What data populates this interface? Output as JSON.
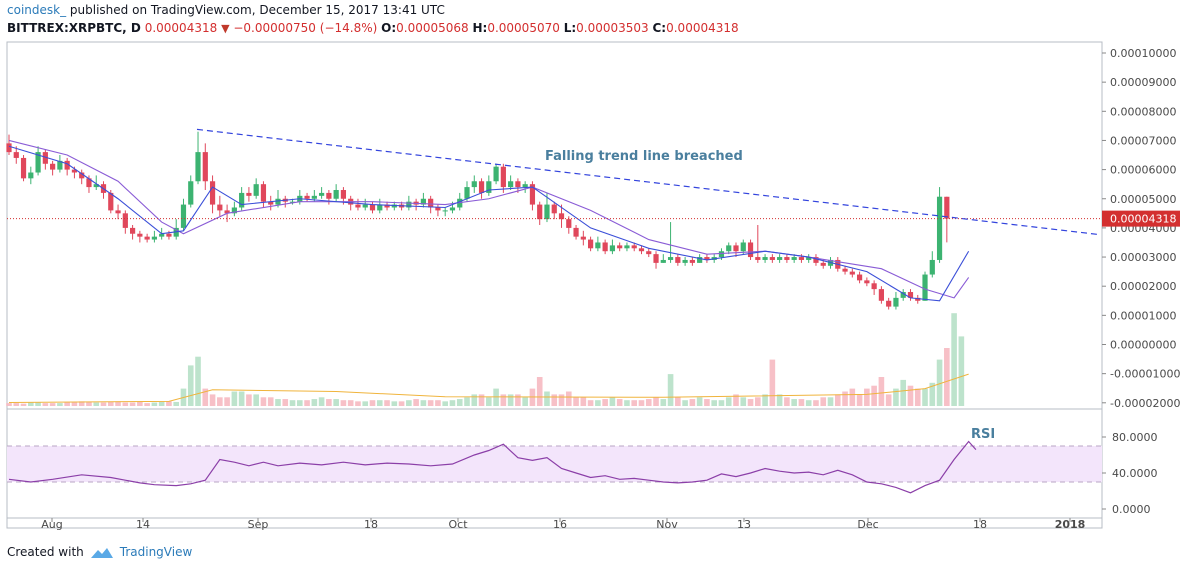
{
  "header": {
    "brand": "coindesk_",
    "published_text": "published on TradingView.com, December 15, 2017 13:41 UTC",
    "symbol": "BITTREX:XRPBTC, D",
    "last": "0.00004318",
    "change": "−0.00000750 (−14.8%)",
    "open_label": "O:",
    "open": "0.00005068",
    "high_label": "H:",
    "high": "0.00005070",
    "low_label": "L:",
    "low": "0.00003503",
    "close_label": "C:",
    "close": "0.00004318"
  },
  "footer": {
    "created_with": "Created with",
    "tradingview": "TradingView"
  },
  "colors": {
    "up": "#3cb371",
    "down": "#e0475b",
    "trend_line": "#3344dd",
    "ma_fast": "#3b4fd8",
    "ma_slow": "#8a5cd6",
    "rsi_line": "#8b3fa8",
    "rsi_band": "#f3e5fb",
    "price_line": "#d32f2f",
    "annotation": "#4a7f9e"
  },
  "chart_data": [
    {
      "type": "candlestick",
      "title": "",
      "x_tick_labels": [
        "Aug",
        "14",
        "Sep",
        "18",
        "Oct",
        "16",
        "Nov",
        "13",
        "Dec",
        "18",
        "2018"
      ],
      "y_tick_labels": [
        "0.00010000",
        "0.00009000",
        "0.00008000",
        "0.00007000",
        "0.00006000",
        "0.00005000",
        "0.00004000",
        "0.00003000",
        "0.00002000",
        "0.00001000",
        "0.00000000",
        "-0.00001000",
        "-0.00002000"
      ],
      "ylim": [
        -2e-05,
        0.000105
      ],
      "last_price_label": "0.00004318",
      "annotation": "Falling trend line breached",
      "trend_line": {
        "start": {
          "x": "2017-08-22",
          "y": 7.38e-05
        },
        "end": {
          "x": "2017-12-31",
          "y": 3.78e-05
        }
      },
      "start_date": "2017-07-27",
      "candles": [
        [
          6.9,
          6.6,
          7.2,
          6.5
        ],
        [
          6.6,
          6.4,
          6.8,
          6.2
        ],
        [
          6.4,
          5.7,
          6.5,
          5.6
        ],
        [
          5.7,
          5.9,
          6.1,
          5.5
        ],
        [
          5.9,
          6.6,
          6.8,
          5.8
        ],
        [
          6.6,
          6.2,
          6.7,
          6.0
        ],
        [
          6.2,
          6.0,
          6.3,
          5.8
        ],
        [
          6.0,
          6.3,
          6.5,
          5.9
        ],
        [
          6.3,
          6.0,
          6.4,
          5.8
        ],
        [
          6.0,
          5.9,
          6.1,
          5.7
        ],
        [
          5.9,
          5.7,
          6.0,
          5.5
        ],
        [
          5.7,
          5.4,
          5.8,
          5.2
        ],
        [
          5.4,
          5.5,
          5.8,
          5.3
        ],
        [
          5.5,
          5.2,
          5.6,
          5.0
        ],
        [
          5.2,
          4.6,
          5.3,
          4.5
        ],
        [
          4.6,
          4.5,
          4.8,
          4.3
        ],
        [
          4.5,
          4.0,
          4.6,
          3.8
        ],
        [
          4.0,
          3.8,
          4.1,
          3.6
        ],
        [
          3.8,
          3.7,
          3.9,
          3.5
        ],
        [
          3.7,
          3.6,
          3.8,
          3.5
        ],
        [
          3.6,
          3.7,
          3.9,
          3.5
        ],
        [
          3.7,
          3.8,
          4.0,
          3.6
        ],
        [
          3.8,
          3.7,
          3.9,
          3.6
        ],
        [
          3.7,
          4.0,
          4.3,
          3.6
        ],
        [
          4.0,
          4.8,
          5.0,
          3.9
        ],
        [
          4.8,
          5.6,
          5.8,
          4.7
        ],
        [
          5.6,
          6.6,
          7.3,
          5.5
        ],
        [
          6.6,
          5.6,
          6.9,
          5.3
        ],
        [
          5.6,
          4.8,
          5.8,
          4.5
        ],
        [
          4.8,
          4.6,
          5.1,
          4.4
        ],
        [
          4.6,
          4.5,
          4.8,
          4.2
        ],
        [
          4.5,
          4.7,
          4.9,
          4.4
        ],
        [
          4.7,
          5.2,
          5.4,
          4.6
        ],
        [
          5.2,
          5.1,
          5.4,
          4.9
        ],
        [
          5.1,
          5.5,
          5.7,
          5.0
        ],
        [
          5.5,
          4.9,
          5.6,
          4.7
        ],
        [
          4.9,
          4.8,
          5.1,
          4.6
        ],
        [
          4.8,
          5.0,
          5.3,
          4.7
        ],
        [
          5.0,
          4.9,
          5.1,
          4.7
        ],
        [
          4.9,
          4.9,
          5.0,
          4.8
        ],
        [
          4.9,
          5.1,
          5.3,
          4.8
        ],
        [
          5.1,
          5.0,
          5.2,
          4.9
        ],
        [
          5.0,
          5.1,
          5.3,
          4.9
        ],
        [
          5.1,
          5.2,
          5.4,
          5.0
        ],
        [
          5.2,
          5.0,
          5.3,
          4.8
        ],
        [
          5.0,
          5.3,
          5.5,
          4.9
        ],
        [
          5.3,
          5.0,
          5.4,
          4.8
        ],
        [
          5.0,
          4.8,
          5.1,
          4.6
        ],
        [
          4.8,
          4.7,
          5.0,
          4.6
        ],
        [
          4.7,
          4.8,
          5.0,
          4.6
        ],
        [
          4.8,
          4.6,
          4.9,
          4.5
        ],
        [
          4.6,
          4.8,
          5.0,
          4.5
        ],
        [
          4.8,
          4.7,
          4.9,
          4.6
        ],
        [
          4.7,
          4.8,
          4.9,
          4.6
        ],
        [
          4.8,
          4.7,
          4.9,
          4.6
        ],
        [
          4.7,
          4.9,
          5.1,
          4.6
        ],
        [
          4.9,
          4.8,
          5.0,
          4.6
        ],
        [
          4.8,
          5.0,
          5.2,
          4.7
        ],
        [
          5.0,
          4.7,
          5.1,
          4.5
        ],
        [
          4.7,
          4.6,
          4.8,
          4.4
        ],
        [
          4.6,
          4.6,
          4.7,
          4.4
        ],
        [
          4.6,
          4.7,
          4.9,
          4.5
        ],
        [
          4.7,
          5.0,
          5.2,
          4.6
        ],
        [
          5.0,
          5.4,
          5.6,
          4.9
        ],
        [
          5.4,
          5.6,
          5.8,
          5.2
        ],
        [
          5.6,
          5.2,
          5.7,
          5.0
        ],
        [
          5.2,
          5.6,
          5.8,
          5.1
        ],
        [
          5.6,
          6.1,
          6.2,
          5.5
        ],
        [
          6.1,
          5.4,
          6.2,
          5.2
        ],
        [
          5.4,
          5.6,
          5.8,
          5.3
        ],
        [
          5.6,
          5.4,
          5.7,
          5.2
        ],
        [
          5.4,
          5.5,
          5.6,
          5.2
        ],
        [
          5.5,
          4.8,
          5.6,
          4.6
        ],
        [
          4.8,
          4.3,
          4.9,
          4.1
        ],
        [
          4.3,
          4.8,
          5.2,
          4.2
        ],
        [
          4.8,
          4.5,
          4.9,
          4.3
        ],
        [
          4.5,
          4.3,
          4.8,
          4.0
        ],
        [
          4.3,
          4.0,
          4.4,
          3.8
        ],
        [
          4.0,
          3.7,
          4.1,
          3.6
        ],
        [
          3.7,
          3.6,
          3.9,
          3.4
        ],
        [
          3.6,
          3.3,
          3.7,
          3.2
        ],
        [
          3.3,
          3.5,
          3.7,
          3.2
        ],
        [
          3.5,
          3.2,
          3.6,
          3.1
        ],
        [
          3.2,
          3.4,
          3.6,
          3.1
        ],
        [
          3.4,
          3.3,
          3.5,
          3.2
        ],
        [
          3.3,
          3.4,
          3.5,
          3.2
        ],
        [
          3.4,
          3.3,
          3.5,
          3.2
        ],
        [
          3.3,
          3.2,
          3.4,
          3.1
        ],
        [
          3.2,
          3.1,
          3.3,
          3.0
        ],
        [
          3.1,
          2.8,
          3.2,
          2.6
        ],
        [
          2.8,
          2.9,
          3.1,
          2.8
        ],
        [
          2.9,
          3.0,
          4.2,
          2.8
        ],
        [
          3.0,
          2.8,
          3.1,
          2.7
        ],
        [
          2.8,
          2.9,
          3.0,
          2.7
        ],
        [
          2.9,
          2.8,
          3.0,
          2.7
        ],
        [
          2.8,
          3.0,
          3.1,
          2.8
        ],
        [
          3.0,
          2.9,
          3.1,
          2.8
        ],
        [
          2.9,
          3.0,
          3.1,
          2.8
        ],
        [
          3.0,
          3.2,
          3.3,
          2.9
        ],
        [
          3.2,
          3.4,
          3.5,
          3.1
        ],
        [
          3.4,
          3.2,
          3.5,
          3.0
        ],
        [
          3.2,
          3.5,
          3.6,
          3.1
        ],
        [
          3.5,
          3.0,
          3.6,
          2.9
        ],
        [
          3.0,
          2.9,
          4.1,
          2.8
        ],
        [
          2.9,
          3.0,
          3.1,
          2.8
        ],
        [
          3.0,
          2.9,
          3.1,
          2.8
        ],
        [
          2.9,
          3.0,
          3.1,
          2.8
        ],
        [
          3.0,
          2.9,
          3.1,
          2.8
        ],
        [
          2.9,
          3.0,
          3.1,
          2.8
        ],
        [
          3.0,
          2.9,
          3.1,
          2.8
        ],
        [
          2.9,
          3.0,
          3.1,
          2.8
        ],
        [
          3.0,
          2.8,
          3.1,
          2.7
        ],
        [
          2.8,
          2.7,
          2.9,
          2.6
        ],
        [
          2.7,
          2.9,
          3.0,
          2.6
        ],
        [
          2.9,
          2.6,
          3.0,
          2.5
        ],
        [
          2.6,
          2.5,
          2.7,
          2.4
        ],
        [
          2.5,
          2.4,
          2.6,
          2.3
        ],
        [
          2.4,
          2.2,
          2.5,
          2.1
        ],
        [
          2.2,
          2.1,
          2.3,
          2.0
        ],
        [
          2.1,
          1.9,
          2.2,
          1.7
        ],
        [
          1.9,
          1.5,
          2.0,
          1.4
        ],
        [
          1.5,
          1.3,
          1.6,
          1.2
        ],
        [
          1.3,
          1.6,
          1.8,
          1.2
        ],
        [
          1.6,
          1.8,
          1.9,
          1.5
        ],
        [
          1.8,
          1.6,
          1.9,
          1.5
        ],
        [
          1.6,
          1.5,
          1.7,
          1.4
        ],
        [
          1.5,
          2.4,
          2.5,
          1.5
        ],
        [
          2.4,
          2.9,
          3.2,
          2.3
        ],
        [
          2.9,
          5.07,
          5.4,
          2.8
        ],
        [
          5.068,
          4.318,
          5.07,
          3.503
        ]
      ],
      "ma_fast": [
        [
          0,
          6.8
        ],
        [
          8,
          6.2
        ],
        [
          15,
          5.0
        ],
        [
          21,
          3.8
        ],
        [
          24,
          3.9
        ],
        [
          28,
          5.4
        ],
        [
          32,
          4.8
        ],
        [
          40,
          5.0
        ],
        [
          50,
          4.8
        ],
        [
          60,
          4.7
        ],
        [
          66,
          5.3
        ],
        [
          72,
          5.4
        ],
        [
          80,
          4.0
        ],
        [
          88,
          3.3
        ],
        [
          96,
          2.9
        ],
        [
          104,
          3.2
        ],
        [
          110,
          3.0
        ],
        [
          118,
          2.5
        ],
        [
          124,
          1.6
        ],
        [
          128,
          1.5
        ],
        [
          132,
          3.2
        ]
      ],
      "ma_slow": [
        [
          0,
          7.0
        ],
        [
          8,
          6.5
        ],
        [
          15,
          5.6
        ],
        [
          21,
          4.2
        ],
        [
          24,
          3.8
        ],
        [
          30,
          4.5
        ],
        [
          40,
          4.9
        ],
        [
          50,
          4.9
        ],
        [
          60,
          4.8
        ],
        [
          66,
          5.0
        ],
        [
          72,
          5.4
        ],
        [
          80,
          4.6
        ],
        [
          88,
          3.6
        ],
        [
          96,
          3.1
        ],
        [
          104,
          3.2
        ],
        [
          110,
          3.0
        ],
        [
          120,
          2.6
        ],
        [
          126,
          1.9
        ],
        [
          130,
          1.6
        ],
        [
          132,
          2.3
        ]
      ],
      "volume": [
        0.05,
        0.05,
        0.04,
        0.06,
        0.06,
        0.05,
        0.05,
        0.05,
        0.06,
        0.06,
        0.08,
        0.07,
        0.06,
        0.06,
        0.07,
        0.08,
        0.06,
        0.06,
        0.07,
        0.05,
        0.06,
        0.07,
        0.08,
        0.07,
        0.3,
        0.7,
        0.85,
        0.3,
        0.2,
        0.15,
        0.15,
        0.25,
        0.25,
        0.2,
        0.2,
        0.15,
        0.15,
        0.12,
        0.12,
        0.1,
        0.1,
        0.1,
        0.12,
        0.15,
        0.12,
        0.12,
        0.1,
        0.1,
        0.08,
        0.08,
        0.1,
        0.1,
        0.1,
        0.08,
        0.08,
        0.1,
        0.12,
        0.1,
        0.1,
        0.1,
        0.08,
        0.1,
        0.12,
        0.15,
        0.2,
        0.2,
        0.15,
        0.3,
        0.2,
        0.2,
        0.2,
        0.15,
        0.3,
        0.5,
        0.25,
        0.2,
        0.2,
        0.25,
        0.15,
        0.15,
        0.1,
        0.1,
        0.12,
        0.15,
        0.12,
        0.1,
        0.1,
        0.1,
        0.12,
        0.15,
        0.12,
        0.55,
        0.15,
        0.1,
        0.12,
        0.15,
        0.12,
        0.1,
        0.1,
        0.15,
        0.2,
        0.15,
        0.12,
        0.15,
        0.2,
        0.8,
        0.2,
        0.15,
        0.12,
        0.12,
        0.1,
        0.1,
        0.15,
        0.15,
        0.2,
        0.25,
        0.3,
        0.2,
        0.3,
        0.35,
        0.5,
        0.2,
        0.3,
        0.45,
        0.35,
        0.3,
        0.3,
        0.4,
        0.8,
        1.0,
        1.6,
        1.2
      ],
      "volume_ma": [
        [
          0,
          0.06
        ],
        [
          22,
          0.08
        ],
        [
          28,
          0.28
        ],
        [
          45,
          0.25
        ],
        [
          60,
          0.16
        ],
        [
          90,
          0.15
        ],
        [
          118,
          0.2
        ],
        [
          126,
          0.3
        ],
        [
          132,
          0.55
        ]
      ]
    },
    {
      "type": "line",
      "title": "RSI",
      "y_tick_labels": [
        "80.0000",
        "40.0000",
        "0.0000"
      ],
      "ylim": [
        -5,
        92
      ],
      "band": [
        30,
        70
      ],
      "values": [
        [
          0,
          33
        ],
        [
          3,
          30
        ],
        [
          6,
          33
        ],
        [
          10,
          38
        ],
        [
          14,
          35
        ],
        [
          18,
          29
        ],
        [
          20,
          27
        ],
        [
          23,
          26
        ],
        [
          25,
          28
        ],
        [
          27,
          32
        ],
        [
          29,
          55
        ],
        [
          31,
          52
        ],
        [
          33,
          48
        ],
        [
          35,
          52
        ],
        [
          37,
          48
        ],
        [
          40,
          51
        ],
        [
          43,
          49
        ],
        [
          46,
          52
        ],
        [
          49,
          49
        ],
        [
          52,
          51
        ],
        [
          55,
          50
        ],
        [
          58,
          48
        ],
        [
          61,
          50
        ],
        [
          64,
          60
        ],
        [
          66,
          65
        ],
        [
          68,
          72
        ],
        [
          70,
          57
        ],
        [
          72,
          54
        ],
        [
          74,
          57
        ],
        [
          76,
          45
        ],
        [
          78,
          40
        ],
        [
          80,
          35
        ],
        [
          82,
          37
        ],
        [
          84,
          33
        ],
        [
          86,
          34
        ],
        [
          88,
          32
        ],
        [
          90,
          30
        ],
        [
          92,
          29
        ],
        [
          94,
          30
        ],
        [
          96,
          32
        ],
        [
          98,
          39
        ],
        [
          100,
          36
        ],
        [
          102,
          40
        ],
        [
          104,
          45
        ],
        [
          106,
          42
        ],
        [
          108,
          40
        ],
        [
          110,
          41
        ],
        [
          112,
          38
        ],
        [
          114,
          43
        ],
        [
          116,
          38
        ],
        [
          118,
          30
        ],
        [
          120,
          28
        ],
        [
          122,
          24
        ],
        [
          124,
          18
        ],
        [
          126,
          26
        ],
        [
          128,
          32
        ],
        [
          130,
          55
        ],
        [
          132,
          75
        ],
        [
          133,
          66
        ]
      ]
    }
  ]
}
